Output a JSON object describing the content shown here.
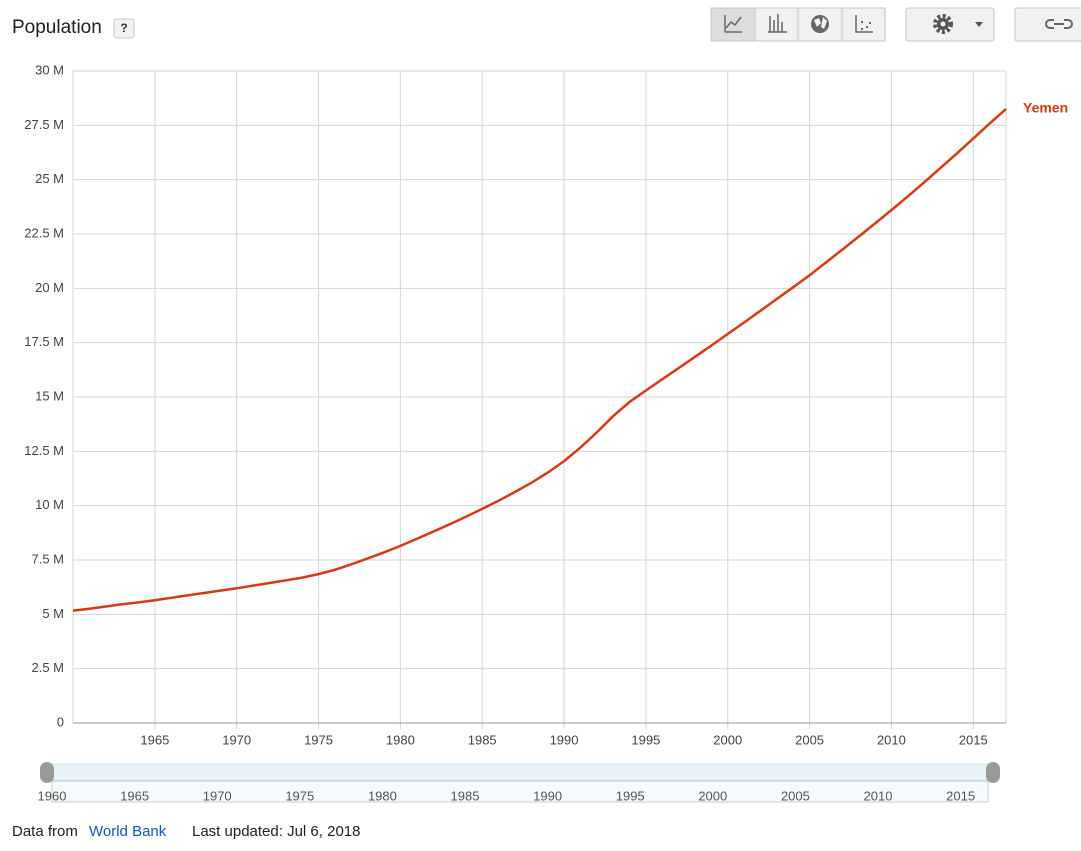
{
  "header": {
    "title": "Population",
    "help": "?"
  },
  "chart_data": {
    "type": "line",
    "x": [
      1960,
      1961,
      1962,
      1963,
      1964,
      1965,
      1966,
      1967,
      1968,
      1969,
      1970,
      1971,
      1972,
      1973,
      1974,
      1975,
      1976,
      1977,
      1978,
      1979,
      1980,
      1981,
      1982,
      1983,
      1984,
      1985,
      1986,
      1987,
      1988,
      1989,
      1990,
      1991,
      1992,
      1993,
      1994,
      1995,
      1996,
      1997,
      1998,
      1999,
      2000,
      2001,
      2002,
      2003,
      2004,
      2005,
      2006,
      2007,
      2008,
      2009,
      2010,
      2011,
      2012,
      2013,
      2014,
      2015,
      2016,
      2017
    ],
    "series": [
      {
        "name": "Yemen",
        "color": "#dc3912",
        "values": [
          5170000,
          5260000,
          5360000,
          5460000,
          5550000,
          5650000,
          5760000,
          5870000,
          5980000,
          6090000,
          6200000,
          6320000,
          6440000,
          6560000,
          6690000,
          6850000,
          7050000,
          7300000,
          7570000,
          7850000,
          8150000,
          8470000,
          8800000,
          9140000,
          9490000,
          9850000,
          10230000,
          10630000,
          11050000,
          11520000,
          12050000,
          12670000,
          13370000,
          14120000,
          14770000,
          15300000,
          15820000,
          16330000,
          16850000,
          17370000,
          17900000,
          18430000,
          18970000,
          19510000,
          20050000,
          20600000,
          21190000,
          21780000,
          22380000,
          22990000,
          23600000,
          24230000,
          24880000,
          25540000,
          26210000,
          26900000,
          27580000,
          28250000
        ]
      }
    ],
    "xlim": [
      1960,
      2017
    ],
    "xticks": [
      1965,
      1970,
      1975,
      1980,
      1985,
      1990,
      1995,
      2000,
      2005,
      2010,
      2015
    ],
    "ylim": [
      0,
      30000000
    ],
    "yticks": [
      0,
      {
        "value": 2500000,
        "label": "2.5 M"
      },
      {
        "value": 5000000,
        "label": "5 M"
      },
      {
        "value": 7500000,
        "label": "7.5 M"
      },
      {
        "value": 10000000,
        "label": "10 M"
      },
      {
        "value": 12500000,
        "label": "12.5 M"
      },
      {
        "value": 15000000,
        "label": "15 M"
      },
      {
        "value": 17500000,
        "label": "17.5 M"
      },
      {
        "value": 20000000,
        "label": "20 M"
      },
      {
        "value": 22500000,
        "label": "22.5 M"
      },
      {
        "value": 25000000,
        "label": "25 M"
      },
      {
        "value": 27500000,
        "label": "27.5 M"
      },
      {
        "value": 30000000,
        "label": "30 M"
      }
    ],
    "grid": true
  },
  "range_slider": {
    "labels": [
      1960,
      1965,
      1970,
      1975,
      1980,
      1985,
      1990,
      1995,
      2000,
      2005,
      2010,
      2015
    ]
  },
  "footer": {
    "source_prefix": "Data from",
    "source_link": "World Bank",
    "updated": "Last updated: Jul 6, 2018"
  }
}
